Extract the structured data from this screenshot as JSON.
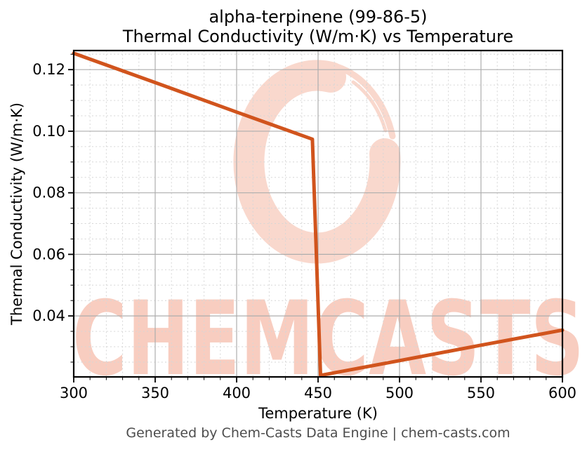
{
  "title": {
    "line1": "alpha-terpinene (99-86-5)",
    "line2": "Thermal Conductivity (W/m·K) vs Temperature"
  },
  "footer": {
    "text": "Generated by Chem-Casts Data Engine | chem-casts.com"
  },
  "watermark": {
    "text": "CHEMCASTS",
    "logo": "circular-brush-swoosh"
  },
  "colors": {
    "line": "#d1541d",
    "watermark_text": "#f8cdc0",
    "watermark_logo": "#f9d8cd",
    "grid_major": "#adadad",
    "grid_minor": "#d6d6d6",
    "axis": "#000000",
    "footer_text": "#4d4d4d",
    "background": "#ffffff"
  },
  "chart_data": {
    "type": "line",
    "title": "alpha-terpinene (99-86-5) Thermal Conductivity (W/m·K) vs Temperature",
    "xlabel": "Temperature (K)",
    "ylabel": "Thermal Conductivity (W/m·K)",
    "xlim": [
      300,
      600
    ],
    "ylim": [
      0.0202,
      0.1262
    ],
    "x_major_ticks": [
      300,
      350,
      400,
      450,
      500,
      550,
      600
    ],
    "x_major_tick_labels": [
      "300",
      "350",
      "400",
      "450",
      "500",
      "550",
      "600"
    ],
    "x_minor_tick_step": 10,
    "y_major_ticks": [
      0.04,
      0.06,
      0.08,
      0.1,
      0.12
    ],
    "y_major_tick_labels": [
      "0.04",
      "0.06",
      "0.08",
      "0.10",
      "0.12"
    ],
    "y_minor_tick_step": 0.005,
    "grid": {
      "major": true,
      "minor": true,
      "minor_style": "dashed"
    },
    "legend": "none",
    "series": [
      {
        "name": "thermal-conductivity",
        "color": "#d1541d",
        "x": [
          300,
          350,
          400,
          446.5,
          451.5,
          500,
          550,
          600
        ],
        "y": [
          0.1253,
          0.1158,
          0.1062,
          0.0974,
          0.0207,
          0.0255,
          0.0305,
          0.0354
        ]
      }
    ]
  }
}
